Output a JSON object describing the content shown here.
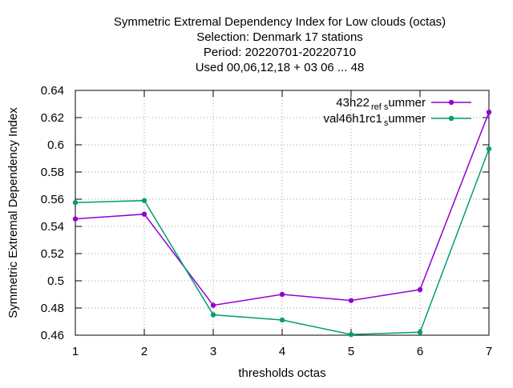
{
  "chart_data": {
    "type": "line",
    "title_lines": [
      "Symmetric Extremal Dependency Index  for Low clouds (octas)",
      "Selection: Denmark      17 stations",
      "Period: 20220701-20220710",
      "Used  00,06,12,18  + 03 06 ... 48"
    ],
    "xlabel": "thresholds octas",
    "ylabel": "Symmetric Extremal Dependency Index",
    "x": [
      1,
      2,
      3,
      4,
      5,
      6,
      7
    ],
    "xlim": [
      1,
      7
    ],
    "ylim": [
      0.46,
      0.64
    ],
    "xticks": [
      1,
      2,
      3,
      4,
      5,
      6,
      7
    ],
    "yticks": [
      0.46,
      0.48,
      0.5,
      0.52,
      0.54,
      0.56,
      0.58,
      0.6,
      0.62,
      0.64
    ],
    "ytick_labels": [
      "0.46",
      "0.48",
      "0.5",
      "0.52",
      "0.54",
      "0.56",
      "0.58",
      "0.6",
      "0.62",
      "0.64"
    ],
    "grid": true,
    "legend_position": "top-right",
    "series": [
      {
        "name": "43h22_ref_summer",
        "legend_parts": [
          "43h22",
          "ref",
          "s",
          "ummer"
        ],
        "color": "#9400d3",
        "values": [
          0.5455,
          0.549,
          0.482,
          0.49,
          0.4855,
          0.4935,
          0.624
        ]
      },
      {
        "name": "val46h1rc1_summer",
        "legend_parts": [
          "val46h1rc1",
          "s",
          "ummer"
        ],
        "color": "#009e73",
        "values": [
          0.5575,
          0.559,
          0.475,
          0.4712,
          0.4605,
          0.4622,
          0.597
        ]
      }
    ]
  }
}
